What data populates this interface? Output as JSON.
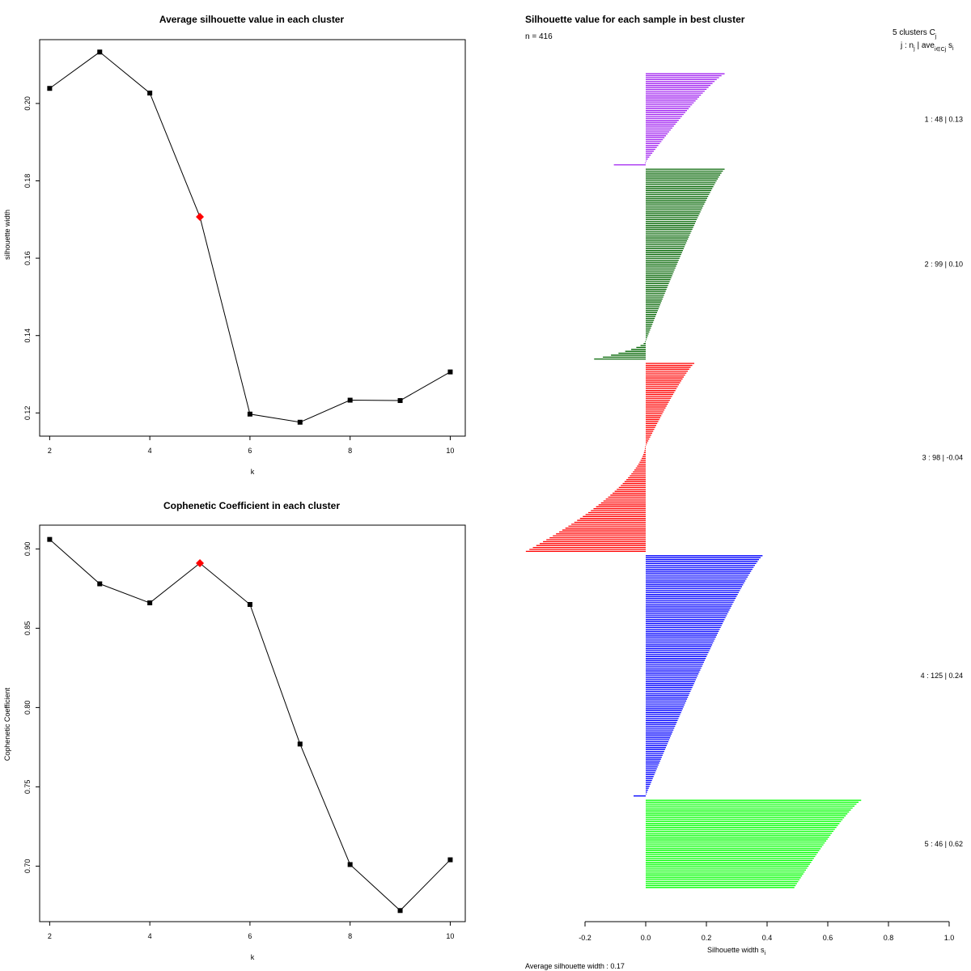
{
  "chart_data": [
    {
      "type": "line",
      "title": "Average silhouette value in each cluster",
      "xlabel": "k",
      "ylabel": "silhouette width",
      "x": [
        2,
        3,
        4,
        5,
        6,
        7,
        8,
        9,
        10
      ],
      "y": [
        0.2039,
        0.2133,
        0.2027,
        0.1707,
        0.1197,
        0.1176,
        0.1233,
        0.1232,
        0.1306
      ],
      "highlight_k": 5,
      "highlight_color": "#ff0000",
      "xlim": [
        1.8,
        10.3
      ],
      "ylim": [
        0.114,
        0.2165
      ],
      "x_ticks": [
        2,
        4,
        6,
        8,
        10
      ],
      "y_ticks": [
        0.12,
        0.14,
        0.16,
        0.18,
        0.2
      ],
      "y_tick_labels": [
        "0.12",
        "0.14",
        "0.16",
        "0.18",
        "0.20"
      ]
    },
    {
      "type": "line",
      "title": "Cophenetic Coefficient in each cluster",
      "xlabel": "k",
      "ylabel": "Cophenetic Coefficient",
      "x": [
        2,
        3,
        4,
        5,
        6,
        7,
        8,
        9,
        10
      ],
      "y": [
        0.906,
        0.878,
        0.866,
        0.891,
        0.865,
        0.777,
        0.701,
        0.672,
        0.704
      ],
      "highlight_k": 5,
      "highlight_color": "#ff0000",
      "xlim": [
        1.8,
        10.3
      ],
      "ylim": [
        0.665,
        0.915
      ],
      "x_ticks": [
        2,
        4,
        6,
        8,
        10
      ],
      "y_ticks": [
        0.7,
        0.75,
        0.8,
        0.85,
        0.9
      ],
      "y_tick_labels": [
        "0.70",
        "0.75",
        "0.80",
        "0.85",
        "0.90"
      ]
    },
    {
      "type": "bar",
      "orientation": "horizontal",
      "title": "Silhouette value for each sample in best cluster",
      "n_label": "n = 416",
      "legend_header": "5 clusters C",
      "legend_header_sub": "j",
      "legend_sub": "j :  n",
      "legend_sub2": " | ave",
      "legend_sub3": "i∈Cj",
      "legend_sub4": " s",
      "legend_sub5": "i",
      "xlabel": "Silhouette width s",
      "xlabel_sub": "i",
      "footer": "Average silhouette width :  0.17",
      "xlim": [
        -0.2,
        1.0
      ],
      "x_ticks": [
        -0.2,
        0.0,
        0.2,
        0.4,
        0.6,
        0.8,
        1.0
      ],
      "x_tick_labels": [
        "-0.2",
        "0.0",
        "0.2",
        "0.4",
        "0.6",
        "0.8",
        "1.0"
      ],
      "total_n": 416,
      "clusters": [
        {
          "id": 1,
          "n": 48,
          "avg": 0.13,
          "label": "1 :   48  |  0.13",
          "color": "#a020f0",
          "max": 0.26,
          "min": -0.105,
          "neg_count": 2
        },
        {
          "id": 2,
          "n": 99,
          "avg": 0.1,
          "label": "2 :   99  |  0.10",
          "color": "#006400",
          "max": 0.26,
          "min": -0.17,
          "neg_count": 10
        },
        {
          "id": 3,
          "n": 98,
          "avg": -0.04,
          "label": "3 :   98  |  -0.04",
          "color": "#ff0000",
          "max": 0.16,
          "min": -0.395,
          "neg_count": 55
        },
        {
          "id": 4,
          "n": 125,
          "avg": 0.24,
          "label": "4 :   125  |  0.24",
          "color": "#0000ff",
          "max": 0.385,
          "min": -0.04,
          "neg_count": 1
        },
        {
          "id": 5,
          "n": 46,
          "avg": 0.62,
          "label": "5 :   46  |  0.62",
          "color": "#00ff00",
          "max": 0.71,
          "min": 0.49,
          "neg_count": 0
        }
      ]
    }
  ]
}
